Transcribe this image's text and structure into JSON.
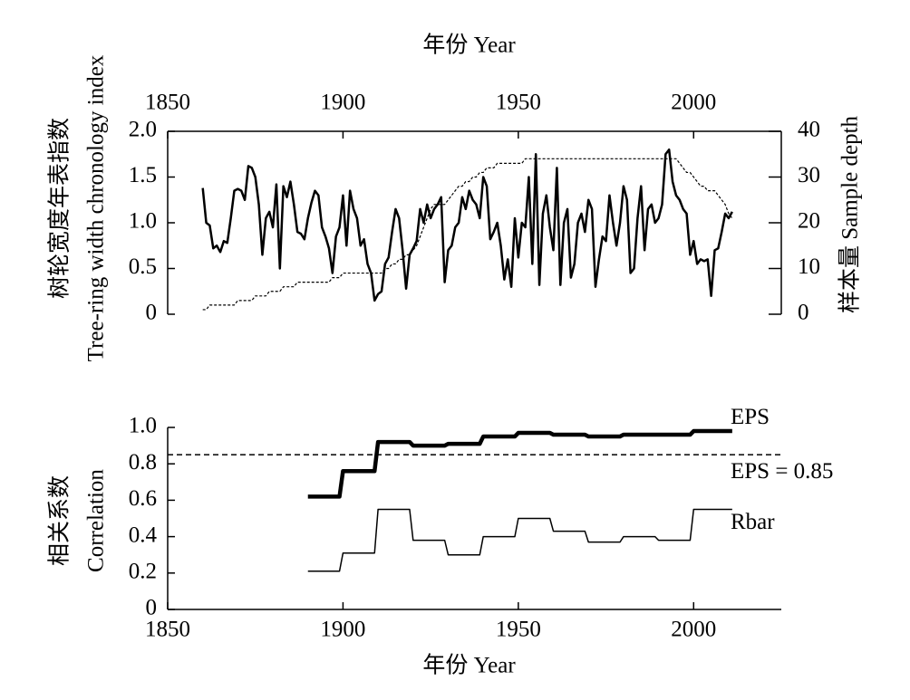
{
  "chart_data": [
    {
      "type": "line",
      "xlabel": "年份 Year",
      "ylabel": [
        "树轮宽度年表指数",
        "Tree-ring width chronology index"
      ],
      "y2label": "样本量 Sample depth",
      "xaxis_position": "top",
      "x": [
        1860,
        1861,
        1862,
        1863,
        1864,
        1865,
        1866,
        1867,
        1868,
        1869,
        1870,
        1871,
        1872,
        1873,
        1874,
        1875,
        1876,
        1877,
        1878,
        1879,
        1880,
        1881,
        1882,
        1883,
        1884,
        1885,
        1886,
        1887,
        1888,
        1889,
        1890,
        1891,
        1892,
        1893,
        1894,
        1895,
        1896,
        1897,
        1898,
        1899,
        1900,
        1901,
        1902,
        1903,
        1904,
        1905,
        1906,
        1907,
        1908,
        1909,
        1910,
        1911,
        1912,
        1913,
        1914,
        1915,
        1916,
        1917,
        1918,
        1919,
        1920,
        1921,
        1922,
        1923,
        1924,
        1925,
        1926,
        1927,
        1928,
        1929,
        1930,
        1931,
        1932,
        1933,
        1934,
        1935,
        1936,
        1937,
        1938,
        1939,
        1940,
        1941,
        1942,
        1943,
        1944,
        1945,
        1946,
        1947,
        1948,
        1949,
        1950,
        1951,
        1952,
        1953,
        1954,
        1955,
        1956,
        1957,
        1958,
        1959,
        1960,
        1961,
        1962,
        1963,
        1964,
        1965,
        1966,
        1967,
        1968,
        1969,
        1970,
        1971,
        1972,
        1973,
        1974,
        1975,
        1976,
        1977,
        1978,
        1979,
        1980,
        1981,
        1982,
        1983,
        1984,
        1985,
        1986,
        1987,
        1988,
        1989,
        1990,
        1991,
        1992,
        1993,
        1994,
        1995,
        1996,
        1997,
        1998,
        1999,
        2000,
        2001,
        2002,
        2003,
        2004,
        2005,
        2006,
        2007,
        2008,
        2009,
        2010,
        2011
      ],
      "series": [
        {
          "color": "#000000",
          "values": [
            1.38,
            1.0,
            0.97,
            0.72,
            0.75,
            0.68,
            0.8,
            0.78,
            1.05,
            1.35,
            1.37,
            1.35,
            1.25,
            1.62,
            1.6,
            1.5,
            1.2,
            0.65,
            1.05,
            1.12,
            0.95,
            1.42,
            0.5,
            1.4,
            1.28,
            1.45,
            1.2,
            0.9,
            0.88,
            0.82,
            1.05,
            1.22,
            1.35,
            1.3,
            0.95,
            0.85,
            0.72,
            0.45,
            0.85,
            0.95,
            1.3,
            0.75,
            1.35,
            1.15,
            1.05,
            0.75,
            0.82,
            0.55,
            0.45,
            0.15,
            0.22,
            0.25,
            0.55,
            0.62,
            0.9,
            1.15,
            1.05,
            0.7,
            0.28,
            0.65,
            0.72,
            0.8,
            1.15,
            1.0,
            1.2,
            1.05,
            1.15,
            1.2,
            1.28,
            0.35,
            0.7,
            0.75,
            0.95,
            1.0,
            1.28,
            1.15,
            1.35,
            1.25,
            1.2,
            1.05,
            1.5,
            1.4,
            0.82,
            0.9,
            1.0,
            0.75,
            0.38,
            0.6,
            0.3,
            1.05,
            0.62,
            1.0,
            0.95,
            1.5,
            0.55,
            1.75,
            0.32,
            1.1,
            1.3,
            0.95,
            0.7,
            1.6,
            0.32,
            1.0,
            1.15,
            0.4,
            0.55,
            1.0,
            1.1,
            0.9,
            1.25,
            1.15,
            0.3,
            0.6,
            0.85,
            0.8,
            1.3,
            1.0,
            0.75,
            1.0,
            1.4,
            1.25,
            0.45,
            0.5,
            1.05,
            1.4,
            0.7,
            1.15,
            1.2,
            1.0,
            1.05,
            1.2,
            1.75,
            1.8,
            1.45,
            1.3,
            1.25,
            1.15,
            1.1,
            0.65,
            0.8,
            0.55,
            0.6,
            0.58,
            0.6,
            0.2,
            0.7,
            0.72,
            0.9,
            1.1,
            1.05,
            1.12
          ]
        },
        {
          "color": "#000000",
          "axis": "y2",
          "dashed": true,
          "values": [
            1,
            1,
            2,
            2,
            2,
            2,
            2,
            2,
            2,
            2,
            3,
            3,
            3,
            3,
            3,
            4,
            4,
            4,
            4,
            5,
            5,
            5,
            5,
            6,
            6,
            6,
            6,
            7,
            7,
            7,
            7,
            7,
            7,
            7,
            7,
            7,
            7,
            8,
            8,
            8,
            9,
            9,
            9,
            9,
            9,
            9,
            9,
            9,
            9,
            9,
            9,
            9,
            10,
            10,
            11,
            11,
            12,
            12,
            13,
            13,
            14,
            15,
            17,
            19,
            21,
            23,
            24,
            24,
            24,
            24,
            25,
            26,
            27,
            28,
            28,
            29,
            29,
            30,
            30,
            31,
            31,
            32,
            32,
            32,
            33,
            33,
            33,
            33,
            33,
            33,
            33,
            33,
            34,
            34,
            34,
            34,
            34,
            34,
            34,
            34,
            34,
            34,
            34,
            34,
            34,
            34,
            34,
            34,
            34,
            34,
            34,
            34,
            34,
            34,
            34,
            34,
            34,
            34,
            34,
            34,
            34,
            34,
            34,
            34,
            34,
            34,
            34,
            34,
            34,
            34,
            34,
            34,
            34,
            34,
            34,
            34,
            33,
            32,
            31,
            31,
            30,
            29,
            28,
            28,
            27,
            27,
            27,
            26,
            25,
            24,
            22,
            21
          ]
        }
      ],
      "xlim": [
        1850,
        2025
      ],
      "xticks": [
        1850,
        1900,
        1950,
        2000
      ],
      "ylim": [
        0,
        2
      ],
      "yticks": [
        0,
        0.5,
        {
          "value": 1,
          "label": "1.0"
        },
        1.5,
        {
          "value": 2,
          "label": "2.0"
        }
      ],
      "y2lim": [
        0,
        40
      ],
      "y2ticks": [
        0,
        10,
        20,
        30,
        40
      ]
    },
    {
      "type": "line",
      "xlabel": "年份 Year",
      "ylabel": [
        "相关系数",
        "Correlation"
      ],
      "xaxis_position": "bottom",
      "series": [
        {
          "name": "EPS",
          "color": "#000000",
          "x": [
            1890,
            1899,
            1900,
            1909,
            1910,
            1919,
            1920,
            1929,
            1930,
            1939,
            1940,
            1949,
            1950,
            1959,
            1960,
            1969,
            1970,
            1979,
            1980,
            1989,
            1990,
            1999,
            2000,
            2011
          ],
          "values": [
            0.62,
            0.62,
            0.76,
            0.76,
            0.92,
            0.92,
            0.9,
            0.9,
            0.91,
            0.91,
            0.95,
            0.95,
            0.97,
            0.97,
            0.96,
            0.96,
            0.95,
            0.95,
            0.96,
            0.96,
            0.96,
            0.96,
            0.98,
            0.98
          ]
        },
        {
          "name": "Rbar",
          "color": "#000000",
          "x": [
            1890,
            1899,
            1900,
            1909,
            1910,
            1919,
            1920,
            1929,
            1930,
            1939,
            1940,
            1949,
            1950,
            1959,
            1960,
            1969,
            1970,
            1979,
            1980,
            1989,
            1990,
            1999,
            2000,
            2011
          ],
          "values": [
            0.21,
            0.21,
            0.31,
            0.31,
            0.55,
            0.55,
            0.38,
            0.38,
            0.3,
            0.3,
            0.4,
            0.4,
            0.5,
            0.5,
            0.43,
            0.43,
            0.37,
            0.37,
            0.4,
            0.4,
            0.38,
            0.38,
            0.55,
            0.55
          ]
        }
      ],
      "threshold": {
        "value": 0.85,
        "label": "EPS = 0.85"
      },
      "xlim": [
        1850,
        2025
      ],
      "xticks": [
        1850,
        1900,
        1950,
        2000
      ],
      "ylim": [
        0,
        1
      ],
      "yticks": [
        0,
        0.2,
        0.4,
        0.6,
        0.8,
        {
          "value": 1,
          "label": "1.0"
        }
      ]
    }
  ]
}
